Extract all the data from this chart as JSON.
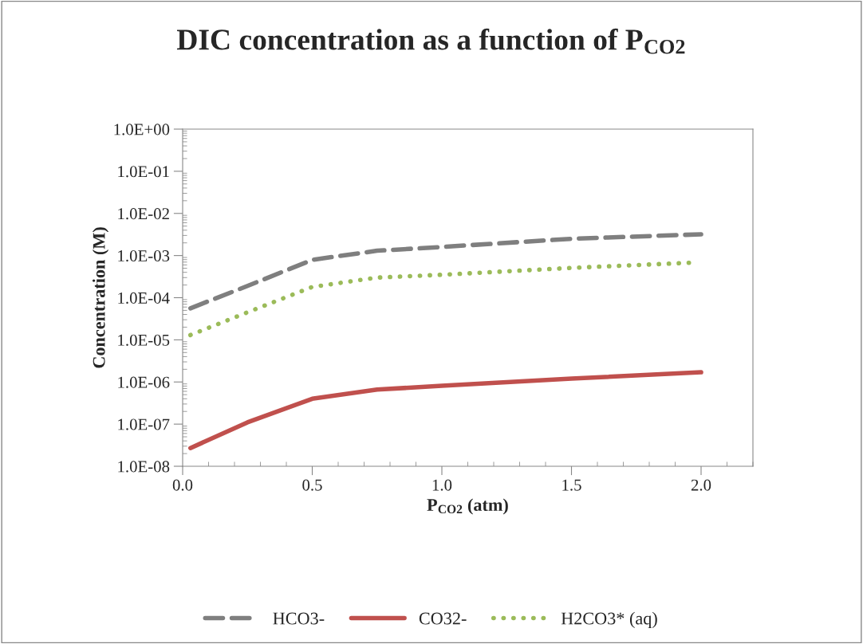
{
  "chart_data": {
    "type": "line",
    "title": "DIC concentration as a function of P$_{CO2}$",
    "xlabel": "P$_{CO2}$ (atm)",
    "ylabel": "Concentration (M)",
    "log": "y",
    "grid": false,
    "legend": "bottom",
    "marker": "none",
    "xlim": [
      0,
      2.2
    ],
    "xticks": [
      {
        "value": 0,
        "label": "0.0"
      },
      {
        "value": 0.5,
        "label": "0.5"
      },
      {
        "value": 1,
        "label": "1.0"
      },
      {
        "value": 1.5,
        "label": "1.5"
      },
      {
        "value": 2,
        "label": "2.0"
      }
    ],
    "ylim": [
      1e-08,
      1
    ],
    "yticks": [
      {
        "value": 1e-08,
        "label": "1.0E-08"
      },
      {
        "value": 1e-07,
        "label": "1.0E-07"
      },
      {
        "value": 1e-06,
        "label": "1.0E-06"
      },
      {
        "value": 1e-05,
        "label": "1.0E-05"
      },
      {
        "value": 0.0001,
        "label": "1.0E-04"
      },
      {
        "value": 0.001,
        "label": "1.0E-03"
      },
      {
        "value": 0.01,
        "label": "1.0E-02"
      },
      {
        "value": 0.1,
        "label": "1.0E-01"
      },
      {
        "value": 1,
        "label": "1.0E+00"
      }
    ],
    "x": [
      0.03,
      0.25,
      0.5,
      0.75,
      1.0,
      1.5,
      2.0
    ],
    "series": [
      {
        "name": "HCO3-",
        "color": "#7f7f7f",
        "line_style": "dashed",
        "values": [
          5.6e-05,
          0.00019,
          0.00079,
          0.0013,
          0.0016,
          0.0025,
          0.0032
        ]
      },
      {
        "name": "CO32-",
        "color": "#c0504d",
        "line_style": "solid",
        "values": [
          2.7e-08,
          1.1e-07,
          4e-07,
          6.6e-07,
          8.1e-07,
          1.2e-06,
          1.7e-06
        ]
      },
      {
        "name": "H2CO3* (aq)",
        "color": "#9bbb59",
        "line_style": "dotted",
        "x": [
          0.03,
          0.25,
          0.5,
          0.75,
          1.0,
          1.5,
          1.97
        ],
        "values": [
          1.3e-05,
          4.5e-05,
          0.00018,
          0.0003,
          0.00035,
          0.00051,
          0.00068
        ]
      }
    ]
  }
}
